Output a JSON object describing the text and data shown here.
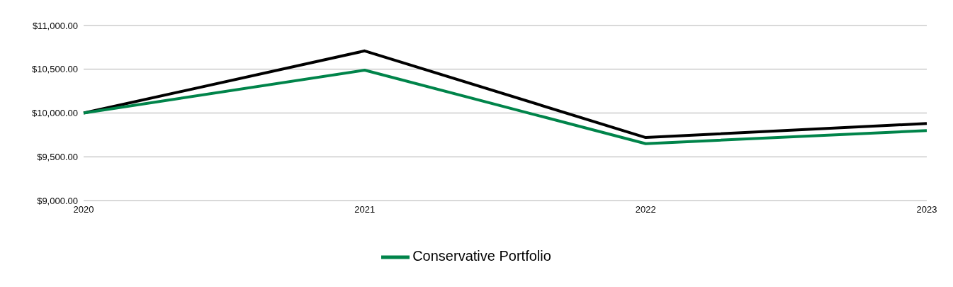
{
  "chart_data": {
    "type": "line",
    "categories": [
      "2020",
      "2021",
      "2022",
      "2023"
    ],
    "series": [
      {
        "color": "#000000",
        "values": [
          10000,
          10710,
          9720,
          9880
        ]
      },
      {
        "name": "Conservative Portfolio",
        "color": "#00844a",
        "values": [
          10000,
          10490,
          9650,
          9800
        ]
      }
    ],
    "ylim": [
      9000,
      11000
    ],
    "yticks": [
      {
        "value": 9000,
        "label": "$9,000.00"
      },
      {
        "value": 9500,
        "label": "$9,500.00"
      },
      {
        "value": 10000,
        "label": "$10,000.00"
      },
      {
        "value": 10500,
        "label": "$10,500.00"
      },
      {
        "value": 11000,
        "label": "$11,000.00"
      }
    ],
    "grid": "y",
    "legend": "bottom",
    "marker": "none",
    "line_style": "solid"
  }
}
